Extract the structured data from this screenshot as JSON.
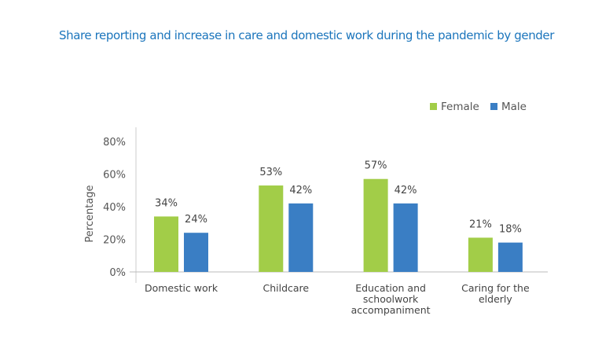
{
  "chart_data": {
    "type": "bar",
    "title": "Share reporting and increase in care and domestic work during the pandemic by gender",
    "xlabel": "",
    "ylabel": "Percentage",
    "ylim": [
      0,
      80
    ],
    "yticks": [
      "0%",
      "20%",
      "40%",
      "60%",
      "80%"
    ],
    "ytick_values": [
      0,
      20,
      40,
      60,
      80
    ],
    "categories": [
      [
        "Domestic work"
      ],
      [
        "Childcare"
      ],
      [
        "Education and",
        "schoolwork",
        "accompaniment"
      ],
      [
        "Caring for the",
        "elderly"
      ]
    ],
    "series": [
      {
        "name": "Female",
        "values": [
          34,
          53,
          57,
          21
        ],
        "labels": [
          "34%",
          "53%",
          "57%",
          "21%"
        ],
        "color": "#a2cd48"
      },
      {
        "name": "Male",
        "values": [
          24,
          42,
          42,
          18
        ],
        "labels": [
          "24%",
          "42%",
          "42%",
          "18%"
        ],
        "color": "#3a7ec4"
      }
    ],
    "legend_position": "top-right",
    "grid": false
  }
}
